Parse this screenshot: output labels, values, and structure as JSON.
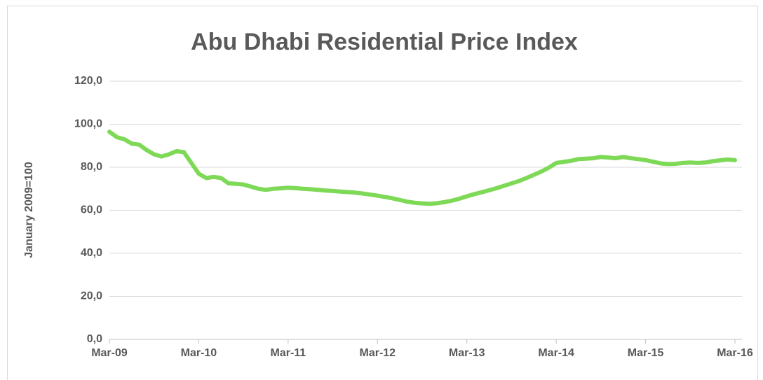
{
  "chart_data": {
    "type": "line",
    "title": "Abu Dhabi Residential Price Index",
    "y_label": "January 2009=100",
    "categories": [
      "Mar-09",
      null,
      null,
      null,
      null,
      null,
      null,
      null,
      null,
      null,
      null,
      null,
      "Mar-10",
      null,
      null,
      null,
      null,
      null,
      null,
      null,
      null,
      null,
      null,
      null,
      "Mar-11",
      null,
      null,
      null,
      null,
      null,
      null,
      null,
      null,
      null,
      null,
      null,
      "Mar-12",
      null,
      null,
      null,
      null,
      null,
      null,
      null,
      null,
      null,
      null,
      null,
      "Mar-13",
      null,
      null,
      null,
      null,
      null,
      null,
      null,
      null,
      null,
      null,
      null,
      "Mar-14",
      null,
      null,
      null,
      null,
      null,
      null,
      null,
      null,
      null,
      null,
      null,
      "Mar-15",
      null,
      null,
      null,
      null,
      null,
      null,
      null,
      null,
      null,
      null,
      null,
      "Mar-16"
    ],
    "values": [
      96.5,
      94,
      93,
      91,
      90.5,
      88,
      86,
      85,
      86,
      87.5,
      87,
      82,
      77,
      75,
      75.5,
      75,
      72.5,
      72.3,
      72,
      71,
      70,
      69.5,
      70,
      70.2,
      70.5,
      70.3,
      70,
      69.8,
      69.5,
      69.2,
      69,
      68.7,
      68.5,
      68.2,
      67.8,
      67.3,
      66.8,
      66.2,
      65.6,
      64.8,
      64,
      63.5,
      63.2,
      63,
      63.3,
      63.8,
      64.5,
      65.4,
      66.5,
      67.5,
      68.4,
      69.3,
      70.3,
      71.4,
      72.5,
      73.6,
      75,
      76.5,
      78,
      79.8,
      82,
      82.5,
      83,
      83.8,
      84,
      84.2,
      84.8,
      84.5,
      84.2,
      84.8,
      84.2,
      83.8,
      83.3,
      82.6,
      81.8,
      81.5,
      81.6,
      82,
      82.2,
      82,
      82.2,
      82.8,
      83.2,
      83.6,
      83.3
    ],
    "color": "#7ed957",
    "ylim": [
      0,
      120
    ],
    "yticks": [
      {
        "value": 0,
        "label": "0,0"
      },
      {
        "value": 20,
        "label": "20,0"
      },
      {
        "value": 40,
        "label": "40,0"
      },
      {
        "value": 60,
        "label": "60,0"
      },
      {
        "value": 80,
        "label": "80,0"
      },
      {
        "value": 100,
        "label": "100,0"
      },
      {
        "value": 120,
        "label": "120,0"
      }
    ],
    "grid": true
  }
}
